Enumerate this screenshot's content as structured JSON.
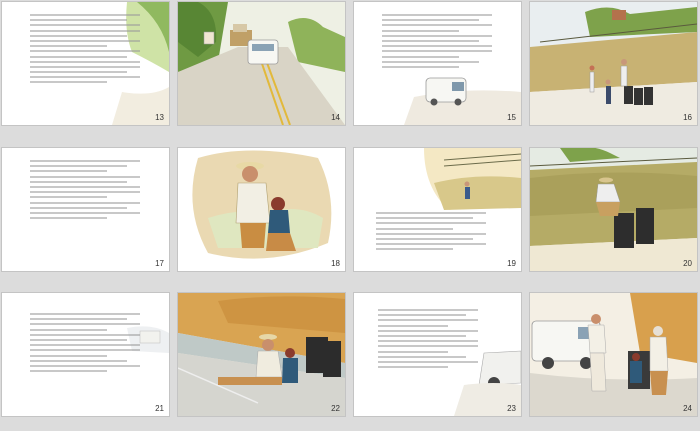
{
  "slides": [
    {
      "number": "13",
      "type": "text-with-scene"
    },
    {
      "number": "14",
      "type": "illustration",
      "scene": "truck-and-van-on-road"
    },
    {
      "number": "15",
      "type": "text-with-van"
    },
    {
      "number": "16",
      "type": "illustration",
      "scene": "people-by-trash-cans"
    },
    {
      "number": "17",
      "type": "text"
    },
    {
      "number": "18",
      "type": "illustration",
      "scene": "man-and-boy-in-field"
    },
    {
      "number": "19",
      "type": "text-with-scene"
    },
    {
      "number": "20",
      "type": "illustration",
      "scene": "man-bending-by-bins"
    },
    {
      "number": "21",
      "type": "text"
    },
    {
      "number": "22",
      "type": "illustration",
      "scene": "resting-by-roadside"
    },
    {
      "number": "23",
      "type": "text-with-van"
    },
    {
      "number": "24",
      "type": "illustration",
      "scene": "men-by-white-van"
    }
  ],
  "colors": {
    "background": "#dcdcdc",
    "page": "#ffffff",
    "page_number": "#333333"
  }
}
